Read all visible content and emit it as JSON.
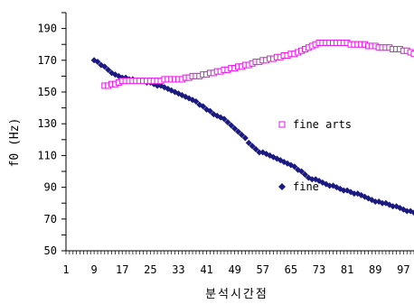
{
  "chart_data": {
    "type": "scatter",
    "xlabel": "분석시간점",
    "ylabel": "f0 (Hz)",
    "xlim": [
      1,
      100
    ],
    "ylim": [
      50,
      200
    ],
    "x_ticks": [
      1,
      9,
      17,
      25,
      33,
      41,
      49,
      57,
      65,
      73,
      81,
      89,
      97
    ],
    "y_ticks": [
      50,
      70,
      90,
      110,
      130,
      150,
      170,
      190
    ],
    "legend_position": "right-center",
    "grid": false,
    "colors": {
      "fine": "#1a1a80",
      "fine_arts": "#e619e6"
    },
    "series": [
      {
        "name": "fine",
        "marker": "filled-diamond",
        "points": [
          [
            9,
            170
          ],
          [
            10,
            169
          ],
          [
            11,
            167
          ],
          [
            12,
            166
          ],
          [
            13,
            164
          ],
          [
            14,
            162
          ],
          [
            15,
            161
          ],
          [
            16,
            160
          ],
          [
            17,
            159
          ],
          [
            18,
            159
          ],
          [
            19,
            158
          ],
          [
            20,
            158
          ],
          [
            21,
            157
          ],
          [
            22,
            157
          ],
          [
            23,
            157
          ],
          [
            24,
            156
          ],
          [
            25,
            156
          ],
          [
            26,
            155
          ],
          [
            27,
            154
          ],
          [
            28,
            154
          ],
          [
            29,
            153
          ],
          [
            30,
            152
          ],
          [
            31,
            151
          ],
          [
            32,
            150
          ],
          [
            33,
            149
          ],
          [
            34,
            148
          ],
          [
            35,
            147
          ],
          [
            36,
            146
          ],
          [
            37,
            145
          ],
          [
            38,
            144
          ],
          [
            39,
            142
          ],
          [
            40,
            141
          ],
          [
            41,
            139
          ],
          [
            42,
            138
          ],
          [
            43,
            136
          ],
          [
            44,
            135
          ],
          [
            45,
            134
          ],
          [
            46,
            133
          ],
          [
            47,
            131
          ],
          [
            48,
            129
          ],
          [
            49,
            127
          ],
          [
            50,
            125
          ],
          [
            51,
            123
          ],
          [
            52,
            121
          ],
          [
            53,
            118
          ],
          [
            54,
            116
          ],
          [
            55,
            114
          ],
          [
            56,
            112
          ],
          [
            57,
            112
          ],
          [
            58,
            111
          ],
          [
            59,
            110
          ],
          [
            60,
            109
          ],
          [
            61,
            108
          ],
          [
            62,
            107
          ],
          [
            63,
            106
          ],
          [
            64,
            105
          ],
          [
            65,
            104
          ],
          [
            66,
            103
          ],
          [
            67,
            101
          ],
          [
            68,
            100
          ],
          [
            69,
            98
          ],
          [
            70,
            96
          ],
          [
            71,
            95
          ],
          [
            72,
            95
          ],
          [
            73,
            94
          ],
          [
            74,
            93
          ],
          [
            75,
            92
          ],
          [
            76,
            91
          ],
          [
            77,
            91
          ],
          [
            78,
            90
          ],
          [
            79,
            89
          ],
          [
            80,
            88
          ],
          [
            81,
            88
          ],
          [
            82,
            87
          ],
          [
            83,
            86
          ],
          [
            84,
            86
          ],
          [
            85,
            85
          ],
          [
            86,
            84
          ],
          [
            87,
            83
          ],
          [
            88,
            82
          ],
          [
            89,
            81
          ],
          [
            90,
            81
          ],
          [
            91,
            80
          ],
          [
            92,
            80
          ],
          [
            93,
            79
          ],
          [
            94,
            78
          ],
          [
            95,
            78
          ],
          [
            96,
            77
          ],
          [
            97,
            76
          ],
          [
            98,
            75
          ],
          [
            99,
            75
          ],
          [
            100,
            74
          ],
          [
            101,
            74
          ],
          [
            102,
            74
          ],
          [
            103,
            73
          ]
        ]
      },
      {
        "name": "fine arts",
        "marker": "hollow-square",
        "points": [
          [
            12,
            154
          ],
          [
            13,
            154
          ],
          [
            14,
            155
          ],
          [
            15,
            155
          ],
          [
            16,
            156
          ],
          [
            17,
            157
          ],
          [
            18,
            157
          ],
          [
            19,
            157
          ],
          [
            20,
            157
          ],
          [
            21,
            157
          ],
          [
            22,
            157
          ],
          [
            23,
            157
          ],
          [
            24,
            157
          ],
          [
            25,
            157
          ],
          [
            26,
            157
          ],
          [
            27,
            157
          ],
          [
            28,
            157
          ],
          [
            29,
            158
          ],
          [
            30,
            158
          ],
          [
            31,
            158
          ],
          [
            32,
            158
          ],
          [
            33,
            158
          ],
          [
            34,
            158
          ],
          [
            35,
            159
          ],
          [
            36,
            159
          ],
          [
            37,
            160
          ],
          [
            38,
            160
          ],
          [
            39,
            160
          ],
          [
            40,
            161
          ],
          [
            41,
            161
          ],
          [
            42,
            162
          ],
          [
            43,
            162
          ],
          [
            44,
            163
          ],
          [
            45,
            163
          ],
          [
            46,
            164
          ],
          [
            47,
            164
          ],
          [
            48,
            165
          ],
          [
            49,
            165
          ],
          [
            50,
            166
          ],
          [
            51,
            166
          ],
          [
            52,
            167
          ],
          [
            53,
            167
          ],
          [
            54,
            168
          ],
          [
            55,
            169
          ],
          [
            56,
            169
          ],
          [
            57,
            170
          ],
          [
            58,
            170
          ],
          [
            59,
            171
          ],
          [
            60,
            171
          ],
          [
            61,
            172
          ],
          [
            62,
            172
          ],
          [
            63,
            173
          ],
          [
            64,
            173
          ],
          [
            65,
            174
          ],
          [
            66,
            174
          ],
          [
            67,
            175
          ],
          [
            68,
            176
          ],
          [
            69,
            177
          ],
          [
            70,
            178
          ],
          [
            71,
            179
          ],
          [
            72,
            180
          ],
          [
            73,
            181
          ],
          [
            74,
            181
          ],
          [
            75,
            181
          ],
          [
            76,
            181
          ],
          [
            77,
            181
          ],
          [
            78,
            181
          ],
          [
            79,
            181
          ],
          [
            80,
            181
          ],
          [
            81,
            181
          ],
          [
            82,
            180
          ],
          [
            83,
            180
          ],
          [
            84,
            180
          ],
          [
            85,
            180
          ],
          [
            86,
            180
          ],
          [
            87,
            179
          ],
          [
            88,
            179
          ],
          [
            89,
            179
          ],
          [
            90,
            178
          ],
          [
            91,
            178
          ],
          [
            92,
            178
          ],
          [
            93,
            178
          ],
          [
            94,
            177
          ],
          [
            95,
            177
          ],
          [
            96,
            177
          ],
          [
            97,
            176
          ],
          [
            98,
            176
          ],
          [
            99,
            175
          ],
          [
            100,
            174
          ],
          [
            101,
            173
          ],
          [
            102,
            171
          ],
          [
            103,
            169
          ]
        ]
      }
    ]
  }
}
